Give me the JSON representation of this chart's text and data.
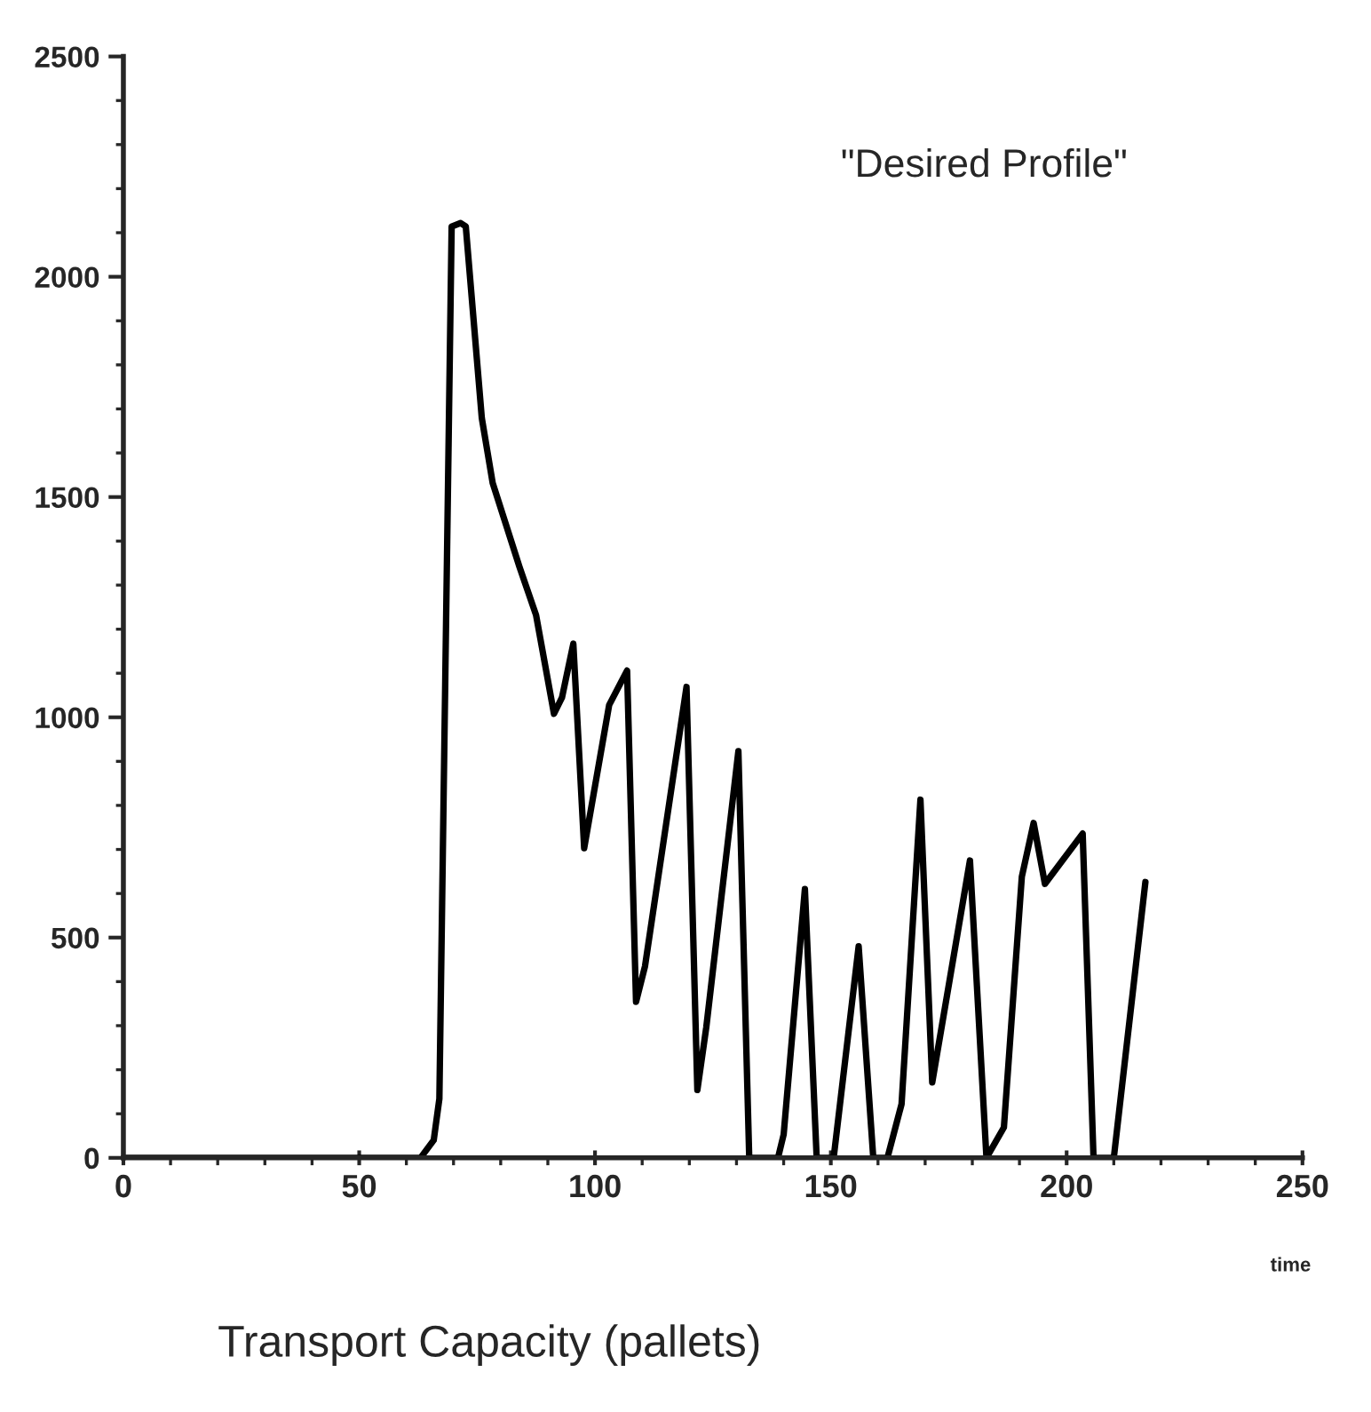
{
  "chart_data": {
    "type": "line",
    "xlabel": "time",
    "annotations": [
      "\"Desired Profile\"",
      "Transport Capacity (pallets)"
    ],
    "x": [
      0,
      63,
      65.8,
      67,
      69.6,
      71.5,
      72.6,
      76,
      78.3,
      84,
      87.5,
      91.3,
      93,
      95.4,
      97.7,
      103,
      106.8,
      108.7,
      110.6,
      119.4,
      121.7,
      123.6,
      130.4,
      132.7,
      134,
      138.8,
      140,
      144.5,
      147,
      150.6,
      155.9,
      159,
      162,
      165,
      169,
      171.5,
      179.5,
      183,
      186.7,
      190.5,
      193,
      195.4,
      203.4,
      205.7,
      210,
      216.7
    ],
    "series": [
      {
        "color": "#000000",
        "values": [
          0,
          0,
          40,
          134,
          2114,
          2122,
          2114,
          1679,
          1532,
          1341,
          1232,
          1008,
          1045,
          1167,
          703,
          1028,
          1106,
          354,
          435,
          1069,
          154,
          297,
          923,
          0,
          0,
          0,
          53,
          610,
          0,
          0,
          480,
          0,
          0,
          122,
          813,
          171,
          675,
          0,
          69,
          638,
          760,
          622,
          736,
          0,
          0,
          626
        ]
      }
    ],
    "xlim": [
      0,
      250
    ],
    "ylim": [
      0,
      2500
    ],
    "xticks": [
      0,
      50,
      100,
      150,
      200,
      250
    ],
    "yticks": [
      0,
      500,
      1000,
      1500,
      2000,
      2500
    ],
    "grid": false,
    "legend": false,
    "marker": "none",
    "line_style": "solid"
  }
}
